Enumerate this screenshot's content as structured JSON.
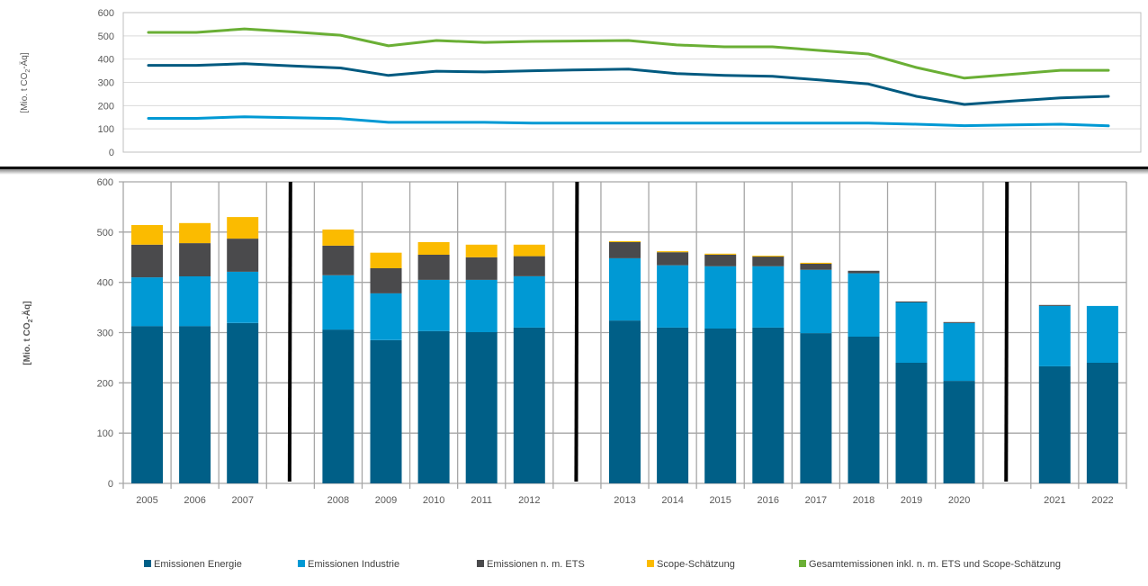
{
  "chart_data": [
    {
      "type": "line",
      "title": "",
      "ylabel_prefix": "[Mio. t CO",
      "ylabel_sub": "2",
      "ylabel_suffix": "-Äq]",
      "ylim": [
        0,
        600
      ],
      "yticks": [
        "0",
        "100",
        "200",
        "300",
        "400",
        "500",
        "600"
      ],
      "grid": true,
      "x": [
        "2005",
        "2006",
        "2007",
        "",
        "2008",
        "2009",
        "2010",
        "2011",
        "2012",
        "",
        "2013",
        "2014",
        "2015",
        "2016",
        "2017",
        "2018",
        "2019",
        "2020",
        "",
        "2021",
        "2022"
      ],
      "series": [
        {
          "name": "Gesamtemissionen inkl. n. m. ETS und Scope-Schätzung",
          "color": "#6aaf35",
          "values": [
            515,
            515,
            530,
            517,
            503,
            457,
            480,
            472,
            476,
            478,
            480,
            461,
            453,
            453,
            437,
            422,
            364,
            318,
            335,
            352,
            352
          ]
        },
        {
          "name": "Emissionen Energie",
          "color": "#005a80",
          "values": [
            373,
            373,
            380,
            371,
            362,
            330,
            348,
            345,
            350,
            354,
            357,
            338,
            330,
            326,
            310,
            293,
            240,
            205,
            220,
            233,
            240
          ]
        },
        {
          "name": "Emissionen Industrie",
          "color": "#0099d4",
          "values": [
            145,
            145,
            152,
            148,
            144,
            128,
            128,
            128,
            125,
            125,
            125,
            125,
            125,
            125,
            125,
            125,
            120,
            114,
            117,
            120,
            113
          ]
        }
      ]
    },
    {
      "type": "bar",
      "stacked": true,
      "title": "",
      "ylabel_prefix": "[Mio. t CO",
      "ylabel_sub": "2",
      "ylabel_suffix": "-Äq]",
      "ylim": [
        0,
        600
      ],
      "yticks": [
        "0",
        "100",
        "200",
        "300",
        "400",
        "500",
        "600"
      ],
      "grid": true,
      "categories": [
        "2005",
        "2006",
        "2007",
        "",
        "2008",
        "2009",
        "2010",
        "2011",
        "2012",
        "",
        "2013",
        "2014",
        "2015",
        "2016",
        "2017",
        "2018",
        "2019",
        "2020",
        "",
        "2021",
        "2022"
      ],
      "period_breaks_after": [
        "2007",
        "2012",
        "2020"
      ],
      "series": [
        {
          "name": "Emissionen Energie",
          "color": "#005f87",
          "values": [
            313,
            313,
            319,
            null,
            306,
            285,
            303,
            301,
            310,
            null,
            324,
            310,
            308,
            310,
            299,
            292,
            240,
            204,
            null,
            233,
            240
          ]
        },
        {
          "name": "Emissionen Industrie",
          "color": "#0099d4",
          "values": [
            97,
            99,
            102,
            null,
            108,
            93,
            102,
            104,
            102,
            null,
            124,
            124,
            124,
            122,
            126,
            126,
            120,
            115,
            null,
            120,
            113
          ]
        },
        {
          "name": "Emissionen n. m. ETS",
          "color": "#4a4a4c",
          "values": [
            65,
            66,
            66,
            null,
            59,
            50,
            50,
            45,
            40,
            null,
            32,
            26,
            23,
            20,
            12,
            5,
            2,
            2,
            null,
            2,
            0
          ]
        },
        {
          "name": "Scope-Schätzung",
          "color": "#fbbb00",
          "values": [
            39,
            40,
            43,
            null,
            32,
            31,
            25,
            25,
            23,
            null,
            2,
            2,
            2,
            1,
            2,
            0,
            0,
            0,
            null,
            0,
            0
          ]
        }
      ],
      "legend": {
        "placement": "bottom",
        "entries": [
          {
            "label": "Emissionen Energie",
            "color": "#005f87"
          },
          {
            "label": "Emissionen Industrie",
            "color": "#0099d4"
          },
          {
            "label": "Emissionen n. m. ETS",
            "color": "#4a4a4c"
          },
          {
            "label": "Scope-Schätzung",
            "color": "#fbbb00"
          },
          {
            "label": "Gesamtemissionen inkl. n. m. ETS und Scope-Schätzung",
            "color": "#6aaf35"
          }
        ]
      }
    }
  ]
}
